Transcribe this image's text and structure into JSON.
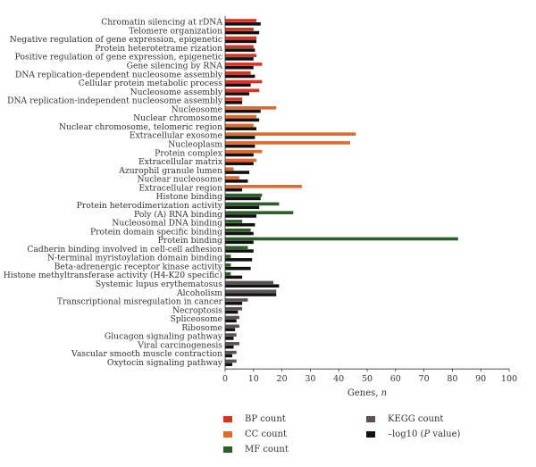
{
  "chart_data": {
    "type": "bar",
    "orientation": "horizontal",
    "xlabel_text": "Genes, ",
    "xlabel_var": "n",
    "xlim": [
      0,
      100
    ],
    "xticks": [
      0,
      10,
      20,
      30,
      40,
      50,
      60,
      70,
      80,
      90,
      100
    ],
    "grid": false,
    "legend_position": "bottom",
    "colors": {
      "BP count": "#d9321f",
      "CC count": "#e06a2c",
      "MF count": "#2e5e28",
      "KEGG count": "#5a5252",
      "-log10 (P value)": "#111111"
    },
    "legend": [
      {
        "series": "BP count",
        "label": "BP count"
      },
      {
        "series": "CC count",
        "label": "CC count"
      },
      {
        "series": "MF count",
        "label": "MF count"
      },
      {
        "series": "KEGG count",
        "label": "KEGG count"
      },
      {
        "series": "-log10 (P value)",
        "label_prefix": "–log10 (",
        "label_italic": "P",
        "label_suffix": " value)"
      }
    ],
    "categories": [
      {
        "label": "Chromatin silencing at rDNA",
        "series": "BP count",
        "count": 11,
        "neglog10p": 12.5
      },
      {
        "label": "Telomere organization",
        "series": "BP count",
        "count": 10,
        "neglog10p": 12
      },
      {
        "label": "Negative regulation of gene expression, epigenetic",
        "series": "BP count",
        "count": 11,
        "neglog10p": 11
      },
      {
        "label": "Protein heterotetrame rization",
        "series": "BP count",
        "count": 10,
        "neglog10p": 10.5
      },
      {
        "label": "Positive regulation of gene expression, epigenetic",
        "series": "BP count",
        "count": 11,
        "neglog10p": 10
      },
      {
        "label": "Gene silencing by RNA",
        "series": "BP count",
        "count": 13,
        "neglog10p": 10
      },
      {
        "label": "DNA replication-dependent nucleosome assembly",
        "series": "BP count",
        "count": 9,
        "neglog10p": 10.5
      },
      {
        "label": "Cellular protein metabolic process",
        "series": "BP count",
        "count": 13,
        "neglog10p": 9
      },
      {
        "label": "Nucleosome assembly",
        "series": "BP count",
        "count": 12,
        "neglog10p": 8.5
      },
      {
        "label": "DNA replication-independent nucleosome assembly",
        "series": "BP count",
        "count": 6,
        "neglog10p": 6
      },
      {
        "label": "Nucleosome",
        "series": "CC count",
        "count": 18,
        "neglog10p": 12.5
      },
      {
        "label": "Nuclear chromosome",
        "series": "CC count",
        "count": 11,
        "neglog10p": 12
      },
      {
        "label": "Nuclear chromosome, telomeric region",
        "series": "CC count",
        "count": 10,
        "neglog10p": 11
      },
      {
        "label": "Extracellular exosome",
        "series": "CC count",
        "count": 46,
        "neglog10p": 10.5
      },
      {
        "label": "Nucleoplasm",
        "series": "CC count",
        "count": 44,
        "neglog10p": 10.5
      },
      {
        "label": "Protein complex",
        "series": "CC count",
        "count": 13,
        "neglog10p": 10
      },
      {
        "label": "Extracellular matrix",
        "series": "CC count",
        "count": 11,
        "neglog10p": 10
      },
      {
        "label": "Azurophil granule lumen",
        "series": "CC count",
        "count": 3,
        "neglog10p": 8.5
      },
      {
        "label": "Nuclear nucleosome",
        "series": "CC count",
        "count": 5,
        "neglog10p": 8
      },
      {
        "label": "Extracellular region",
        "series": "CC count",
        "count": 27,
        "neglog10p": 6
      },
      {
        "label": "Histone binding",
        "series": "MF count",
        "count": 13,
        "neglog10p": 12.5
      },
      {
        "label": "Protein heterodimerization activity",
        "series": "MF count",
        "count": 19,
        "neglog10p": 12
      },
      {
        "label": "Poly (A) RNA binding",
        "series": "MF count",
        "count": 24,
        "neglog10p": 11
      },
      {
        "label": "Nucleosomal DNA binding",
        "series": "MF count",
        "count": 6,
        "neglog10p": 10.5
      },
      {
        "label": "Protein domain specific binding",
        "series": "MF count",
        "count": 9,
        "neglog10p": 10
      },
      {
        "label": "Protein binding",
        "series": "MF count",
        "count": 82,
        "neglog10p": 10
      },
      {
        "label": "Cadherin binding involved in cell-cell adhesion",
        "series": "MF count",
        "count": 8,
        "neglog10p": 10
      },
      {
        "label": "N-terminal myristoylation domain binding",
        "series": "MF count",
        "count": 2,
        "neglog10p": 9.5
      },
      {
        "label": "Beta-adrenergic receptor kinase activity",
        "series": "MF count",
        "count": 2,
        "neglog10p": 9
      },
      {
        "label": "Histone methyltransferase activity (H4-K20 specific)",
        "series": "MF count",
        "count": 2,
        "neglog10p": 6
      },
      {
        "label": "Systemic lupus erythematosus",
        "series": "KEGG count",
        "count": 17,
        "neglog10p": 19
      },
      {
        "label": "Alcoholism",
        "series": "KEGG count",
        "count": 18,
        "neglog10p": 18
      },
      {
        "label": "Transcriptional misregulation in cancer",
        "series": "KEGG count",
        "count": 8,
        "neglog10p": 6
      },
      {
        "label": "Necroptosis",
        "series": "KEGG count",
        "count": 6,
        "neglog10p": 4.5
      },
      {
        "label": "Spliceosome",
        "series": "KEGG count",
        "count": 5,
        "neglog10p": 4
      },
      {
        "label": "Ribosome",
        "series": "KEGG count",
        "count": 5,
        "neglog10p": 3.5
      },
      {
        "label": "Glucagon signaling pathway",
        "series": "KEGG count",
        "count": 4,
        "neglog10p": 3
      },
      {
        "label": "Viral carcinogenesis",
        "series": "KEGG count",
        "count": 5,
        "neglog10p": 3
      },
      {
        "label": "Vascular smooth muscle contraction",
        "series": "KEGG count",
        "count": 4,
        "neglog10p": 2.5
      },
      {
        "label": "Oxytocin signaling pathway",
        "series": "KEGG count",
        "count": 4,
        "neglog10p": 2.5
      }
    ]
  }
}
